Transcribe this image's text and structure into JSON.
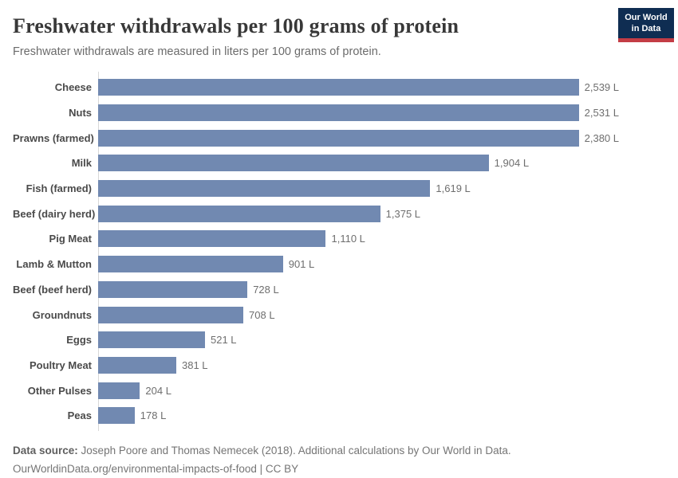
{
  "header": {
    "title": "Freshwater withdrawals per 100 grams of protein",
    "subtitle": "Freshwater withdrawals are measured in liters per 100 grams of protein.",
    "logo": {
      "line1": "Our World",
      "line2": "in Data"
    }
  },
  "chart_data": {
    "type": "bar",
    "orientation": "horizontal",
    "title": "Freshwater withdrawals per 100 grams of protein",
    "xlabel": "",
    "ylabel": "",
    "unit": "liters per 100 grams of protein",
    "xlim": [
      0,
      2539
    ],
    "grid": false,
    "legend": "none",
    "value_labels_position": "end-of-bar",
    "categories": [
      "Cheese",
      "Nuts",
      "Prawns (farmed)",
      "Milk",
      "Fish (farmed)",
      "Beef (dairy herd)",
      "Pig Meat",
      "Lamb & Mutton",
      "Beef (beef herd)",
      "Groundnuts",
      "Eggs",
      "Poultry Meat",
      "Other Pulses",
      "Peas"
    ],
    "values": [
      2539,
      2531,
      2380,
      1904,
      1619,
      1375,
      1110,
      901,
      728,
      708,
      521,
      381,
      204,
      178
    ],
    "value_labels": [
      "2,539 L",
      "2,531 L",
      "2,380 L",
      "1,904 L",
      "1,619 L",
      "1,375 L",
      "1,110 L",
      "901 L",
      "728 L",
      "708 L",
      "521 L",
      "381 L",
      "204 L",
      "178 L"
    ]
  },
  "footer": {
    "source_label": "Data source:",
    "source_text": "Joseph Poore and Thomas Nemecek (2018). Additional calculations by Our World in Data.",
    "link_text": "OurWorldinData.org/environmental-impacts-of-food | CC BY"
  },
  "colors": {
    "bar": "#7189b1",
    "axis_line": "#d9d9d9",
    "category_label": "#4a4a4a",
    "value_label": "#6e6e6e",
    "title": "#383838",
    "subtitle": "#6b6b6b",
    "footer": "#757575",
    "logo_bg": "#0f2d52",
    "logo_accent": "#c33d45"
  }
}
